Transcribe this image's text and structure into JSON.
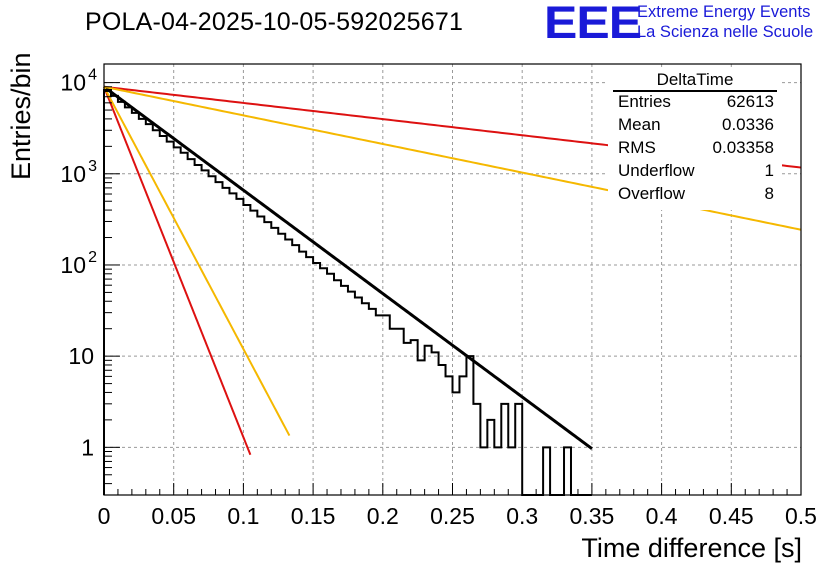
{
  "header": {
    "title": "POLA-04-2025-10-05-592025671",
    "logo_text": "EEE",
    "logo_line1": "Extreme Energy Events",
    "logo_line2": "La Scienza nelle Scuole"
  },
  "stats_box": {
    "title": "DeltaTime",
    "rows": [
      {
        "key": "Entries",
        "value": "62613"
      },
      {
        "key": "Mean",
        "value": "0.0336"
      },
      {
        "key": "RMS",
        "value": "0.03358"
      },
      {
        "key": "Underflow",
        "value": "1"
      },
      {
        "key": "Overflow",
        "value": "8"
      }
    ]
  },
  "chart_data": {
    "type": "histogram",
    "title": "POLA-04-2025-10-05-592025671",
    "xlabel": "Time difference [s]",
    "ylabel": "Entries/bin",
    "xlim": [
      0,
      0.5
    ],
    "ylim": [
      0.3,
      16000
    ],
    "yscale": "log",
    "grid": true,
    "x_ticks": [
      0,
      0.05,
      0.1,
      0.15,
      0.2,
      0.25,
      0.3,
      0.35,
      0.4,
      0.45,
      0.5
    ],
    "x_tick_labels": [
      "0",
      "0.05",
      "0.1",
      "0.15",
      "0.2",
      "0.25",
      "0.3",
      "0.35",
      "0.4",
      "0.45",
      "0.5"
    ],
    "y_ticks": [
      1,
      10,
      100,
      1000,
      10000
    ],
    "y_tick_labels": [
      {
        "base": "1",
        "exp": ""
      },
      {
        "base": "10",
        "exp": ""
      },
      {
        "base": "10",
        "exp": "2"
      },
      {
        "base": "10",
        "exp": "3"
      },
      {
        "base": "10",
        "exp": "4"
      }
    ],
    "histogram": {
      "name": "DeltaTime",
      "bin_width": 0.005,
      "bin_start": 0,
      "counts": [
        8300,
        7150,
        6150,
        5350,
        4650,
        4000,
        3500,
        3000,
        2600,
        2250,
        1950,
        1700,
        1450,
        1250,
        1090,
        940,
        810,
        700,
        610,
        530,
        455,
        395,
        340,
        295,
        255,
        220,
        190,
        165,
        140,
        122,
        105,
        92,
        80,
        68,
        59,
        51,
        44,
        38,
        33,
        28,
        28,
        20,
        20,
        14,
        15,
        9,
        13,
        11,
        8,
        6,
        4,
        6,
        10,
        3,
        1,
        2,
        1,
        3,
        1,
        3,
        0,
        0,
        0,
        1,
        0,
        0,
        1,
        0,
        0,
        0
      ],
      "color": "#000000"
    },
    "fits": [
      {
        "name": "fit-black",
        "A": 9000,
        "tau": 0.0383,
        "x_end": 0.35,
        "color": "#000000"
      },
      {
        "name": "fit-red-steep",
        "A": 9000,
        "tau": 0.0113,
        "x_end": 0.105,
        "color": "#dd1111"
      },
      {
        "name": "fit-yellow-steep",
        "A": 9000,
        "tau": 0.0151,
        "x_end": 0.133,
        "color": "#f5b800"
      },
      {
        "name": "fit-red-flat",
        "A": 9000,
        "tau": 0.2451,
        "x_end": 0.5,
        "color": "#dd1111"
      },
      {
        "name": "fit-yellow-flat",
        "A": 9000,
        "tau": 0.1385,
        "x_end": 0.5,
        "color": "#f5b800"
      }
    ]
  }
}
